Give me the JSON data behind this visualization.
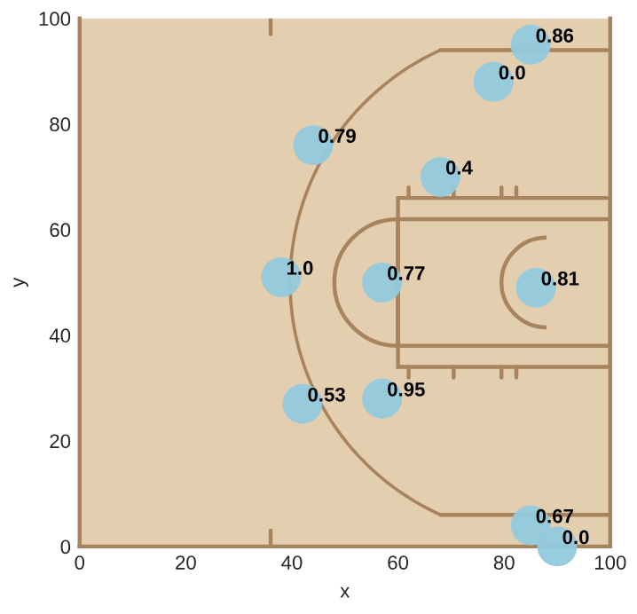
{
  "chart_data": {
    "type": "scatter",
    "xlabel": "x",
    "ylabel": "y",
    "xlim": [
      0,
      100
    ],
    "ylim": [
      0,
      100
    ],
    "xticks": [
      0,
      20,
      40,
      60,
      80,
      100
    ],
    "yticks": [
      0,
      20,
      40,
      60,
      80,
      100
    ],
    "grid": false,
    "marker": "circle",
    "series": [
      {
        "color": "#92cadd",
        "x": [
          85,
          78,
          44,
          68,
          38,
          57,
          86,
          42,
          57,
          85,
          90
        ],
        "values": [
          95,
          88,
          76,
          70,
          51,
          50,
          49,
          27,
          28,
          4,
          0
        ]
      }
    ],
    "annotations": [
      {
        "text": "0.86",
        "x": 85,
        "y": 95
      },
      {
        "text": "0.0",
        "x": 78,
        "y": 88
      },
      {
        "text": "0.79",
        "x": 44,
        "y": 76
      },
      {
        "text": "0.4",
        "x": 68,
        "y": 70
      },
      {
        "text": "1.0",
        "x": 38,
        "y": 51
      },
      {
        "text": "0.77",
        "x": 57,
        "y": 50
      },
      {
        "text": "0.81",
        "x": 86,
        "y": 49
      },
      {
        "text": "0.53",
        "x": 42,
        "y": 27
      },
      {
        "text": "0.95",
        "x": 57,
        "y": 28
      },
      {
        "text": "0.67",
        "x": 85,
        "y": 4
      },
      {
        "text": "0.0",
        "x": 90,
        "y": 0
      }
    ]
  }
}
